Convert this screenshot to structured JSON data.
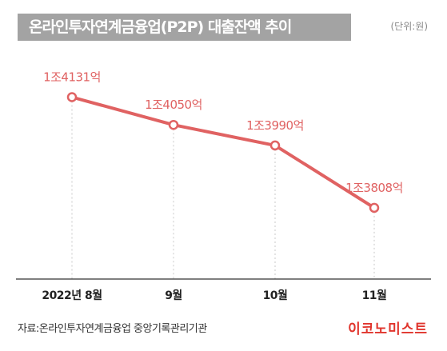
{
  "header": {
    "title": "온라인투자연계금융업(P2P) 대출잔액 추이",
    "unit": "(단위:원)"
  },
  "footer": {
    "source": "자료:온라인투자연계금융업 중앙기록관리기관",
    "brand": "이코노미스트"
  },
  "colors": {
    "line": "#e06262",
    "label": "#e06262",
    "title_bg": "#a3a3a3",
    "brand": "#e0352d"
  },
  "chart_data": {
    "type": "line",
    "categories": [
      "2022년 8월",
      "9월",
      "10월",
      "11월"
    ],
    "series": [
      {
        "values": [
          14131,
          14050,
          13990,
          13808
        ],
        "labels": [
          "1조4131억",
          "1조4050억",
          "1조3990억",
          "1조3808억"
        ]
      }
    ],
    "ylim": [
      13600,
      14270
    ],
    "grid": "vertical dotted drop lines",
    "legend": "none"
  }
}
